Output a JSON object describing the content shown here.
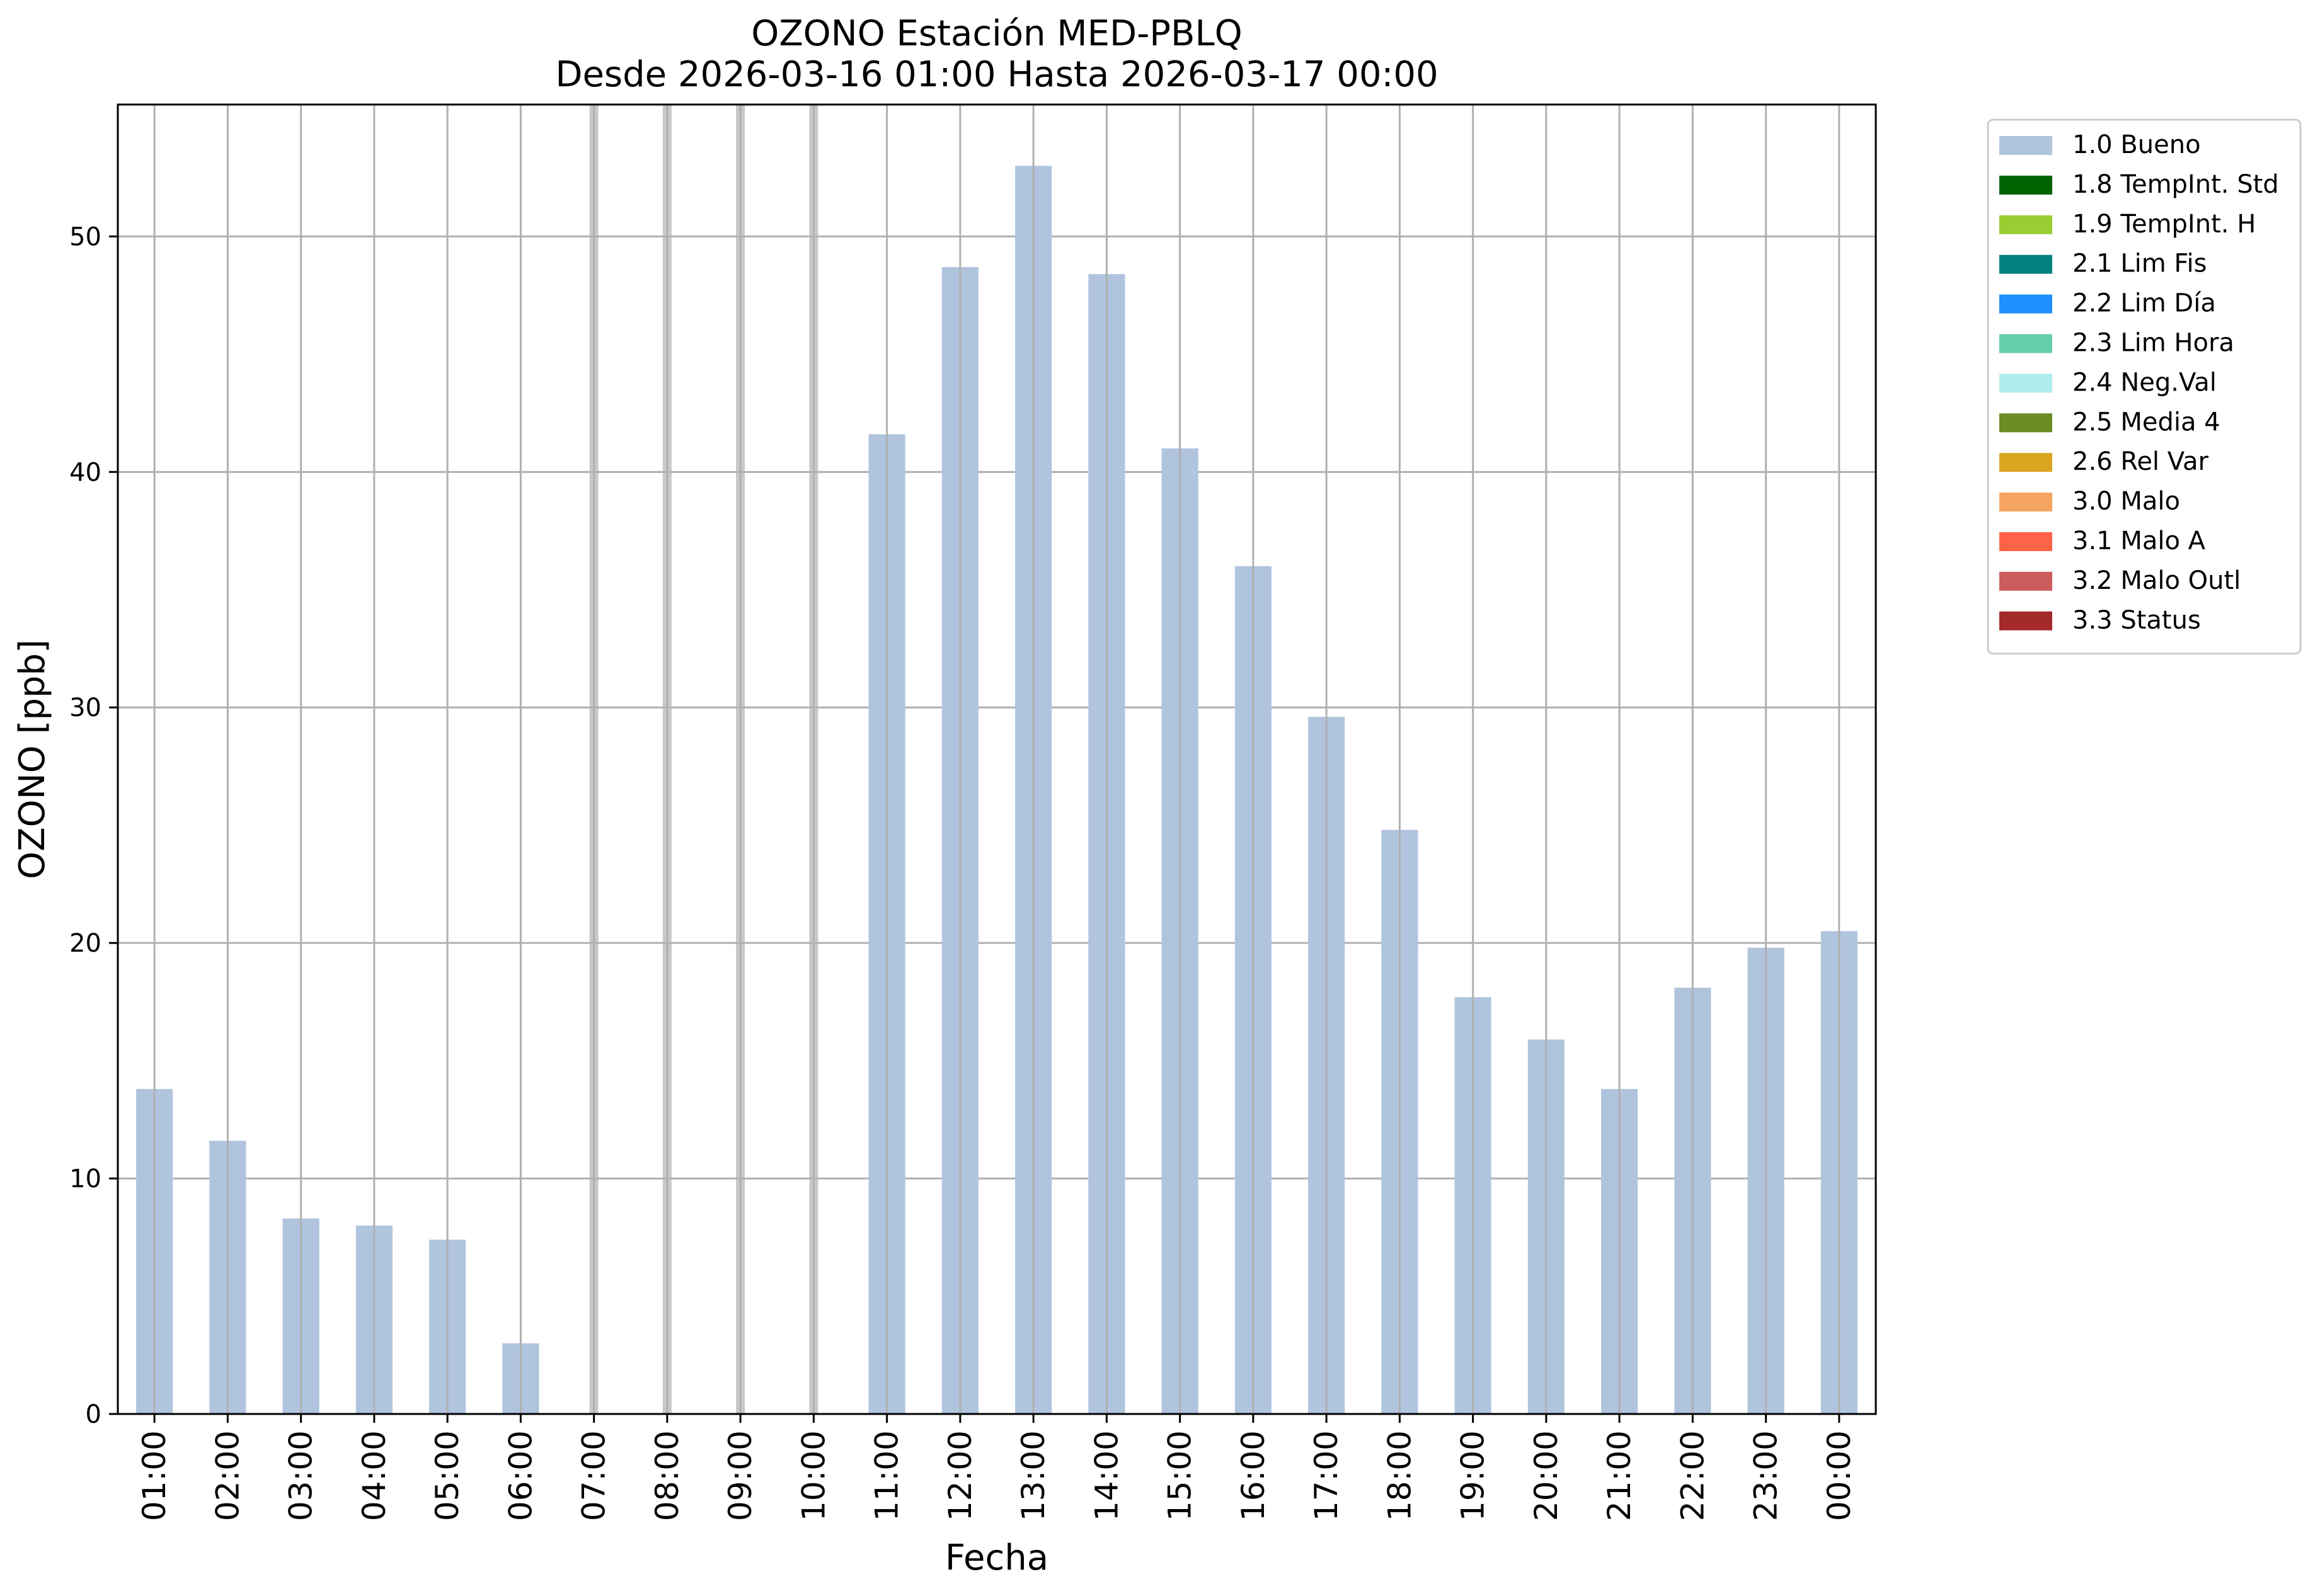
{
  "chart_data": {
    "type": "bar",
    "title": "OZONO Estación MED-PBLQ",
    "subtitle": "Desde 2026-03-16 01:00 Hasta 2026-03-17 00:00",
    "xlabel": "Fecha",
    "ylabel": "OZONO [ppb]",
    "ylim": [
      0,
      55.6
    ],
    "yticks": [
      "0",
      "10",
      "20",
      "30",
      "40",
      "50"
    ],
    "grid": true,
    "legend_position": "outside-top-right",
    "categories": [
      "01:00",
      "02:00",
      "03:00",
      "04:00",
      "05:00",
      "06:00",
      "07:00",
      "08:00",
      "09:00",
      "10:00",
      "11:00",
      "12:00",
      "13:00",
      "14:00",
      "15:00",
      "16:00",
      "17:00",
      "18:00",
      "19:00",
      "20:00",
      "21:00",
      "22:00",
      "23:00",
      "00:00"
    ],
    "series": [
      {
        "name": "1.0 Bueno",
        "color": "#b0c4de",
        "values": [
          13.8,
          11.6,
          8.3,
          8.0,
          7.4,
          3.0,
          null,
          null,
          null,
          null,
          41.6,
          48.7,
          53.0,
          48.4,
          41.0,
          36.0,
          29.6,
          24.8,
          17.7,
          15.9,
          13.8,
          18.1,
          19.8,
          20.5
        ]
      }
    ],
    "missing_markers": [
      "07:00",
      "08:00",
      "09:00",
      "10:00"
    ],
    "legend": [
      {
        "label": "1.0 Bueno",
        "color": "#b0c4de"
      },
      {
        "label": "1.8 TempInt. Std",
        "color": "#006400"
      },
      {
        "label": "1.9 TempInt. H",
        "color": "#9acd32"
      },
      {
        "label": "2.1 Lim Fis",
        "color": "#008080"
      },
      {
        "label": "2.2 Lim Día",
        "color": "#1e90ff"
      },
      {
        "label": "2.3 Lim Hora",
        "color": "#66cdaa"
      },
      {
        "label": "2.4 Neg.Val",
        "color": "#afeeee"
      },
      {
        "label": "2.5 Media 4",
        "color": "#6b8e23"
      },
      {
        "label": "2.6 Rel Var",
        "color": "#daa520"
      },
      {
        "label": "3.0 Malo",
        "color": "#f4a460"
      },
      {
        "label": "3.1 Malo A",
        "color": "#ff6347"
      },
      {
        "label": "3.2 Malo Outl",
        "color": "#cd5c5c"
      },
      {
        "label": "3.3 Status",
        "color": "#a52a2a"
      }
    ],
    "colors": {
      "grid": "#b0b0b0",
      "missing_marker": "#c8c8c8",
      "axes": "#000000"
    }
  }
}
